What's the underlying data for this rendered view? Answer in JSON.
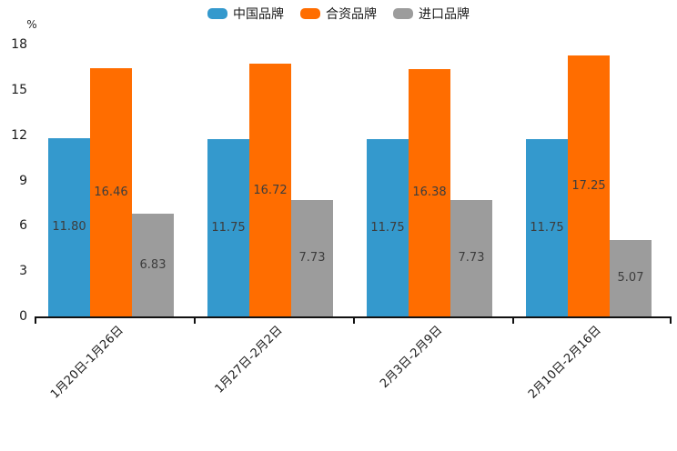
{
  "chart_data": {
    "type": "bar",
    "title": "",
    "y_unit": "%",
    "ylim": [
      0,
      18
    ],
    "yticks": [
      0,
      3,
      6,
      9,
      12,
      15,
      18
    ],
    "grid": false,
    "legend_position": "top",
    "data_labels": "inside-center",
    "value_format": "0.00",
    "categories": [
      "1月20日-1月26日",
      "1月27日-2月2日",
      "2月3日-2月9日",
      "2月10日-2月16日"
    ],
    "series": [
      {
        "name": "中国品牌",
        "color": "#3499CD",
        "values": [
          11.8,
          11.75,
          11.75,
          11.75
        ]
      },
      {
        "name": "合资品牌",
        "color": "#FF6D00",
        "values": [
          16.46,
          16.72,
          16.38,
          17.25
        ]
      },
      {
        "name": "进口品牌",
        "color": "#9C9C9C",
        "values": [
          6.83,
          7.73,
          7.73,
          5.07
        ]
      }
    ],
    "axis_color": "#111111",
    "label_color": "#3d3d3d",
    "tick_label_color": "#1a1a1a"
  }
}
